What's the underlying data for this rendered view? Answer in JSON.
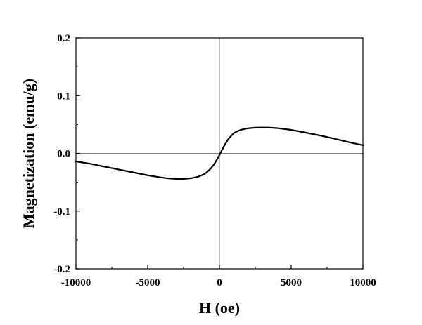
{
  "chart_data": {
    "type": "line",
    "title": "",
    "xlabel": "H (oe)",
    "ylabel": "Magnetization (emu/g)",
    "xlim": [
      -10000,
      10000
    ],
    "ylim": [
      -0.2,
      0.2
    ],
    "x_ticks": [
      -10000,
      -5000,
      0,
      5000,
      10000
    ],
    "x_tick_labels": [
      "-10000",
      "-5000",
      "0",
      "5000",
      "10000"
    ],
    "y_ticks": [
      -0.2,
      -0.1,
      0.0,
      0.1,
      0.2
    ],
    "y_tick_labels": [
      "-0.2",
      "-0.1",
      "0.0",
      "0.1",
      "0.2"
    ],
    "grid": false,
    "reference_lines": {
      "x_zero": true,
      "y_zero": true,
      "color": "#808080"
    },
    "series": [
      {
        "color": "#000000",
        "x": [
          -10000,
          -9000,
          -8000,
          -7000,
          -6000,
          -5000,
          -4000,
          -3500,
          -3000,
          -2500,
          -2000,
          -1500,
          -1200,
          -1000,
          -800,
          -600,
          -400,
          -200,
          0,
          200,
          400,
          600,
          800,
          1000,
          1200,
          1500,
          2000,
          2500,
          3000,
          3500,
          4000,
          5000,
          6000,
          7000,
          8000,
          9000,
          10000
        ],
        "y": [
          -0.014,
          -0.018,
          -0.023,
          -0.028,
          -0.033,
          -0.038,
          -0.042,
          -0.0435,
          -0.0443,
          -0.0443,
          -0.0432,
          -0.0405,
          -0.0375,
          -0.035,
          -0.031,
          -0.026,
          -0.02,
          -0.012,
          -0.003,
          0.007,
          0.016,
          0.024,
          0.03,
          0.035,
          0.0378,
          0.0408,
          0.0435,
          0.0445,
          0.0448,
          0.0446,
          0.0438,
          0.0407,
          0.036,
          0.031,
          0.0255,
          0.0195,
          0.014
        ]
      }
    ]
  }
}
